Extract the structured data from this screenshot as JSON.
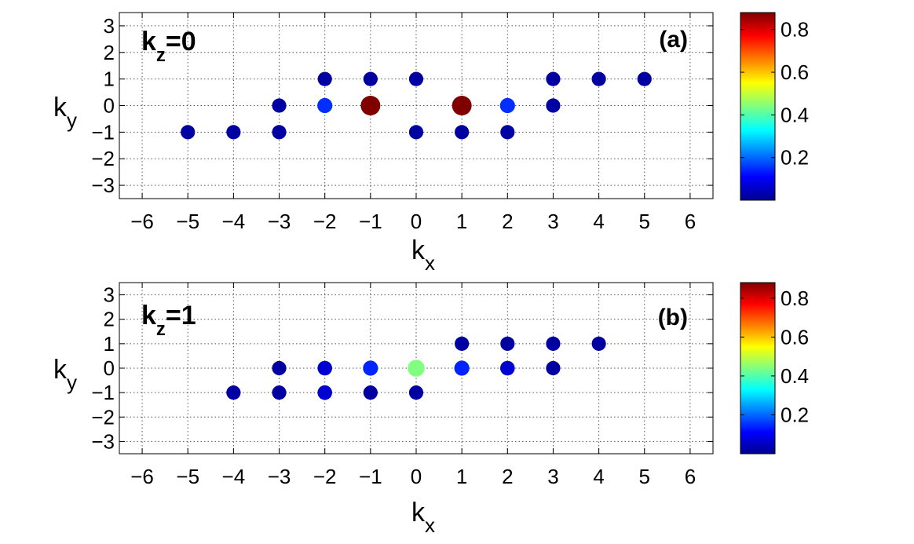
{
  "figure": {
    "panels": [
      {
        "panel_label": "(a)",
        "kz_label": {
          "main": "k",
          "sub": "z",
          "suffix": "=0"
        }
      },
      {
        "panel_label": "(b)",
        "kz_label": {
          "main": "k",
          "sub": "z",
          "suffix": "=1"
        }
      }
    ],
    "axis_labels": {
      "x": {
        "main": "k",
        "sub": "x"
      },
      "y": {
        "main": "k",
        "sub": "y"
      }
    }
  },
  "chart_data": [
    {
      "type": "scatter",
      "title": "",
      "xlabel": "kx",
      "ylabel": "ky",
      "xlim": [
        -6.5,
        6.5
      ],
      "ylim": [
        -3.5,
        3.5
      ],
      "xticks": [
        -6,
        -5,
        -4,
        -3,
        -2,
        -1,
        0,
        1,
        2,
        3,
        4,
        5,
        6
      ],
      "yticks": [
        -3,
        -2,
        -1,
        0,
        1,
        2,
        3
      ],
      "xtick_labels": [
        "−6",
        "−5",
        "−4",
        "−3",
        "−2",
        "−1",
        "0",
        "1",
        "2",
        "3",
        "4",
        "5",
        "6"
      ],
      "ytick_labels": [
        "−3",
        "−2",
        "−1",
        "0",
        "1",
        "2",
        "3"
      ],
      "grid": true,
      "colorbar": {
        "min": 0,
        "max": 0.88,
        "ticks": [
          0.2,
          0.4,
          0.6,
          0.8
        ],
        "tick_labels": [
          "0.2",
          "0.4",
          "0.6",
          "0.8"
        ]
      },
      "points": [
        {
          "x": -2,
          "y": 1,
          "value": 0.03
        },
        {
          "x": -1,
          "y": 1,
          "value": 0.03
        },
        {
          "x": 0,
          "y": 1,
          "value": 0.03
        },
        {
          "x": 3,
          "y": 1,
          "value": 0.03
        },
        {
          "x": 4,
          "y": 1,
          "value": 0.03
        },
        {
          "x": 5,
          "y": 1,
          "value": 0.03
        },
        {
          "x": -3,
          "y": 0,
          "value": 0.03
        },
        {
          "x": -2,
          "y": 0,
          "value": 0.15
        },
        {
          "x": -1,
          "y": 0,
          "value": 0.88
        },
        {
          "x": 1,
          "y": 0,
          "value": 0.88
        },
        {
          "x": 2,
          "y": 0,
          "value": 0.15
        },
        {
          "x": 3,
          "y": 0,
          "value": 0.03
        },
        {
          "x": -5,
          "y": -1,
          "value": 0.03
        },
        {
          "x": -4,
          "y": -1,
          "value": 0.03
        },
        {
          "x": -3,
          "y": -1,
          "value": 0.03
        },
        {
          "x": 0,
          "y": -1,
          "value": 0.03
        },
        {
          "x": 1,
          "y": -1,
          "value": 0.03
        },
        {
          "x": 2,
          "y": -1,
          "value": 0.03
        }
      ]
    },
    {
      "type": "scatter",
      "title": "",
      "xlabel": "kx",
      "ylabel": "ky",
      "xlim": [
        -6.5,
        6.5
      ],
      "ylim": [
        -3.5,
        3.5
      ],
      "xticks": [
        -6,
        -5,
        -4,
        -3,
        -2,
        -1,
        0,
        1,
        2,
        3,
        4,
        5,
        6
      ],
      "yticks": [
        -3,
        -2,
        -1,
        0,
        1,
        2,
        3
      ],
      "xtick_labels": [
        "−6",
        "−5",
        "−4",
        "−3",
        "−2",
        "−1",
        "0",
        "1",
        "2",
        "3",
        "4",
        "5",
        "6"
      ],
      "ytick_labels": [
        "−3",
        "−2",
        "−1",
        "0",
        "1",
        "2",
        "3"
      ],
      "grid": true,
      "colorbar": {
        "min": 0,
        "max": 0.88,
        "ticks": [
          0.2,
          0.4,
          0.6,
          0.8
        ],
        "tick_labels": [
          "0.2",
          "0.4",
          "0.6",
          "0.8"
        ]
      },
      "points": [
        {
          "x": 1,
          "y": 1,
          "value": 0.03
        },
        {
          "x": 2,
          "y": 1,
          "value": 0.03
        },
        {
          "x": 3,
          "y": 1,
          "value": 0.03
        },
        {
          "x": 4,
          "y": 1,
          "value": 0.03
        },
        {
          "x": -3,
          "y": 0,
          "value": 0.03
        },
        {
          "x": -2,
          "y": 0,
          "value": 0.07
        },
        {
          "x": -1,
          "y": 0,
          "value": 0.14
        },
        {
          "x": 0,
          "y": 0,
          "value": 0.44
        },
        {
          "x": 1,
          "y": 0,
          "value": 0.14
        },
        {
          "x": 2,
          "y": 0,
          "value": 0.07
        },
        {
          "x": 3,
          "y": 0,
          "value": 0.03
        },
        {
          "x": -4,
          "y": -1,
          "value": 0.03
        },
        {
          "x": -3,
          "y": -1,
          "value": 0.03
        },
        {
          "x": -2,
          "y": -1,
          "value": 0.07
        },
        {
          "x": -1,
          "y": -1,
          "value": 0.03
        },
        {
          "x": 0,
          "y": -1,
          "value": 0.03
        }
      ]
    }
  ]
}
